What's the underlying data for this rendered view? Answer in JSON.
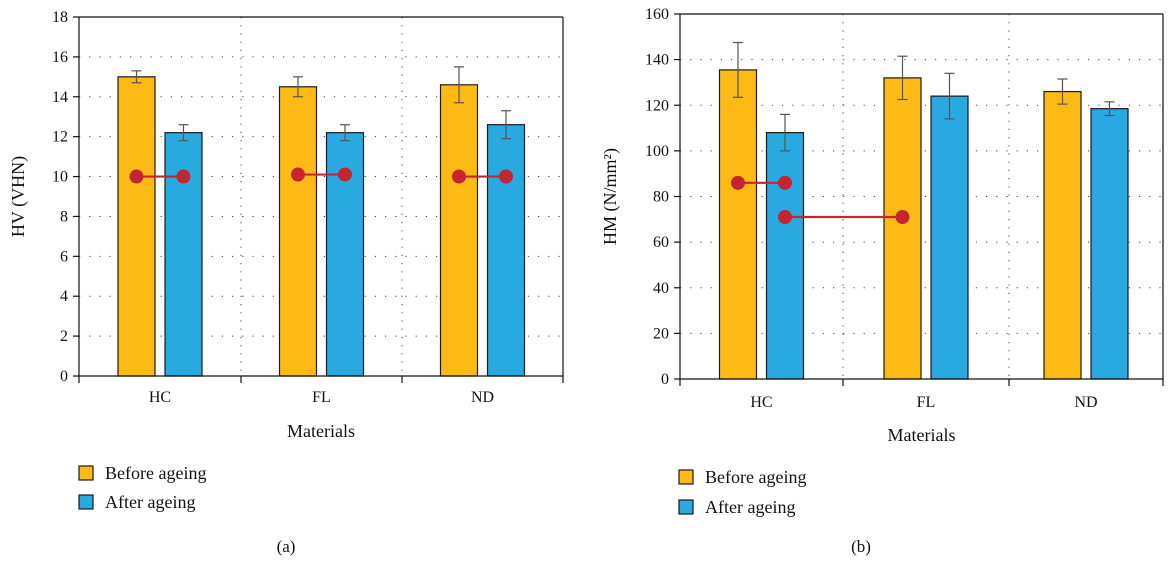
{
  "colors": {
    "before": "#FDBA15",
    "after": "#28A9E0",
    "connector": "#C62430",
    "bar_edge": "#1a1a1a",
    "grid": "#444444"
  },
  "legend": {
    "before": "Before ageing",
    "after": "After ageing"
  },
  "chart_data": [
    {
      "type": "bar",
      "caption": "(a)",
      "categories": [
        "HC",
        "FL",
        "ND"
      ],
      "xlabel": "Materials",
      "ylabel": "HV (VHN)",
      "ylim": [
        0,
        18
      ],
      "yticks": [
        0,
        2,
        4,
        6,
        8,
        10,
        12,
        14,
        16,
        18
      ],
      "grid": true,
      "legend_position": "bottom-left",
      "series": [
        {
          "name": "Before ageing",
          "values": [
            15.0,
            14.5,
            14.6
          ],
          "errors": [
            0.3,
            0.5,
            0.9
          ]
        },
        {
          "name": "After ageing",
          "values": [
            12.2,
            12.2,
            12.6
          ],
          "errors": [
            0.4,
            0.4,
            0.7
          ]
        }
      ],
      "connectors": [
        {
          "from": [
            0,
            0
          ],
          "to": [
            0,
            1
          ],
          "y": 10.0
        },
        {
          "from": [
            1,
            0
          ],
          "to": [
            1,
            1
          ],
          "y": 10.1
        },
        {
          "from": [
            2,
            0
          ],
          "to": [
            2,
            1
          ],
          "y": 10.0
        }
      ]
    },
    {
      "type": "bar",
      "caption": "(b)",
      "categories": [
        "HC",
        "FL",
        "ND"
      ],
      "xlabel": "Materials",
      "ylabel": "HM (N/mm²)",
      "ylim": [
        0,
        160
      ],
      "yticks": [
        0,
        20,
        40,
        60,
        80,
        100,
        120,
        140,
        160
      ],
      "grid": true,
      "legend_position": "bottom-left",
      "series": [
        {
          "name": "Before ageing",
          "values": [
            135.5,
            132.0,
            126.0
          ],
          "errors": [
            12.0,
            9.5,
            5.5
          ]
        },
        {
          "name": "After ageing",
          "values": [
            108.0,
            124.0,
            118.5
          ],
          "errors": [
            8.0,
            10.0,
            3.0
          ]
        }
      ],
      "connectors": [
        {
          "from": [
            0,
            0
          ],
          "to": [
            0,
            1
          ],
          "y": 86
        },
        {
          "from": [
            0,
            1
          ],
          "to": [
            1,
            0
          ],
          "y": 71
        }
      ]
    }
  ]
}
